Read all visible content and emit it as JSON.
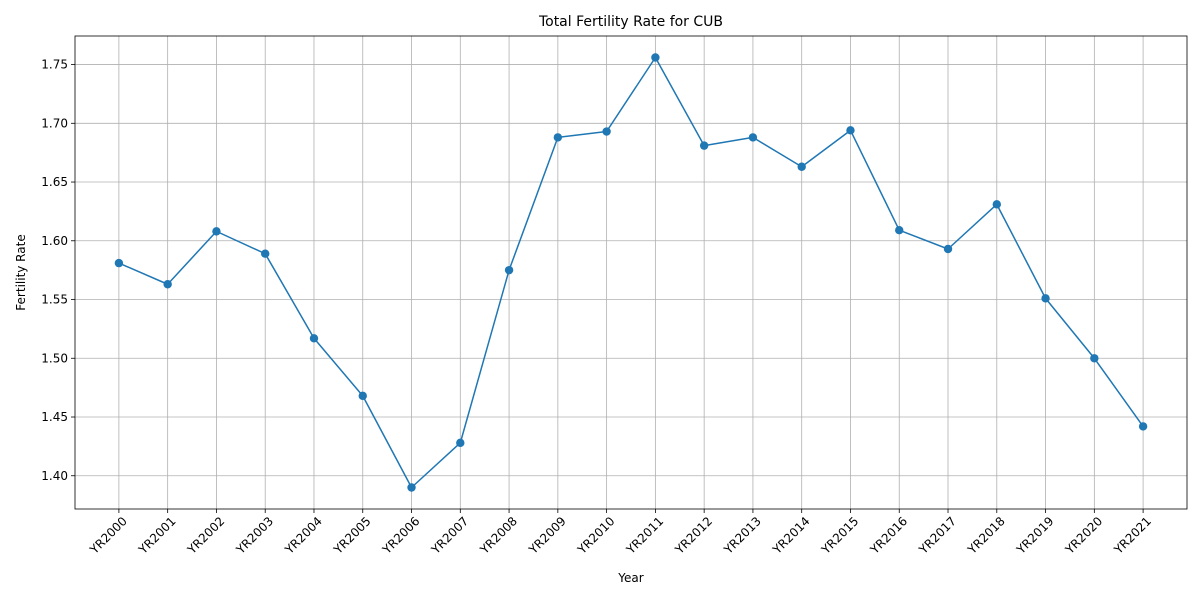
{
  "chart_data": {
    "type": "line",
    "title": "Total Fertility Rate for CUB",
    "xlabel": "Year",
    "ylabel": "Fertility Rate",
    "categories": [
      "YR2000",
      "YR2001",
      "YR2002",
      "YR2003",
      "YR2004",
      "YR2005",
      "YR2006",
      "YR2007",
      "YR2008",
      "YR2009",
      "YR2010",
      "YR2011",
      "YR2012",
      "YR2013",
      "YR2014",
      "YR2015",
      "YR2016",
      "YR2017",
      "YR2018",
      "YR2019",
      "YR2020",
      "YR2021"
    ],
    "series": [
      {
        "values": [
          1.581,
          1.563,
          1.608,
          1.589,
          1.517,
          1.468,
          1.39,
          1.428,
          1.575,
          1.688,
          1.693,
          1.756,
          1.681,
          1.688,
          1.663,
          1.694,
          1.609,
          1.593,
          1.631,
          1.551,
          1.5,
          1.442
        ],
        "color": "#1f77b4",
        "marker": "circle"
      }
    ],
    "yticks": [
      "1.40",
      "1.45",
      "1.50",
      "1.55",
      "1.60",
      "1.65",
      "1.70",
      "1.75"
    ],
    "ylim": [
      1.3717,
      1.7743
    ],
    "grid": true,
    "legend": "none"
  }
}
